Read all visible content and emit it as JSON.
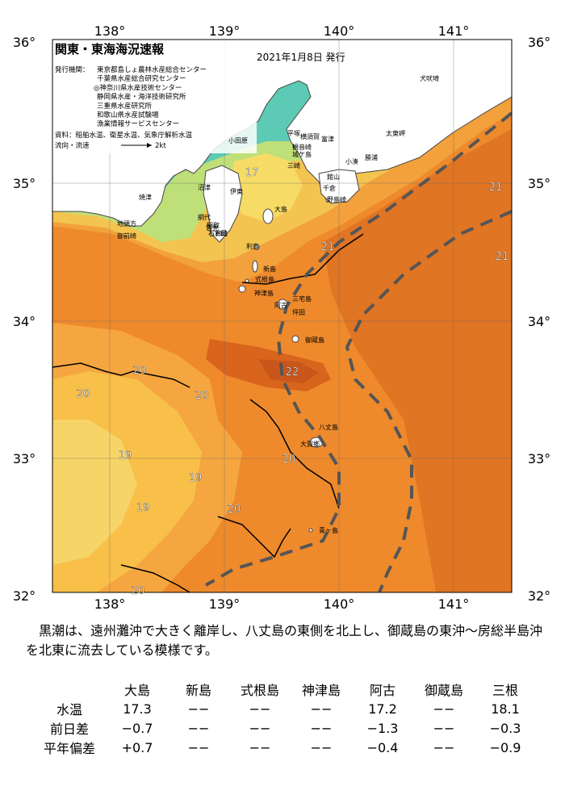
{
  "header": {
    "title": "関東・東海海況速報",
    "date": "2021年1月8日 発行",
    "issuers_label": "発行機関：",
    "issuers": [
      "東京都島しょ農林水産総合センター",
      "千葉県水産総合研究センター",
      "◎神奈川県水産技術センター",
      "静岡県水産・海洋技術研究所",
      "三重県水産研究所",
      "和歌山県水産試験場",
      "漁業情報サービスセンター"
    ],
    "source": "資料：船舶水温、衛星水温、気象庁解析水温",
    "flow_label": "流向・流速",
    "flow_scale": "2kt"
  },
  "axes": {
    "lon_labels": [
      "138°",
      "139°",
      "140°",
      "141°"
    ],
    "lat_labels": [
      "36°",
      "35°",
      "34°",
      "33°",
      "32°"
    ]
  },
  "colors": {
    "warm_dark": "#d9641c",
    "warm": "#ee8a2c",
    "warm_light": "#f5a640",
    "orange_yellow": "#f8c048",
    "yellow": "#f6dc66",
    "yellow_green": "#cfe07a",
    "green": "#8fd66f",
    "teal": "#48c8b2",
    "blue": "#3a9ee0",
    "kuroshio_line": "#555555"
  },
  "place_labels": [
    "犬吠埼",
    "太東岬",
    "勝浦",
    "小湊",
    "館山",
    "千倉",
    "野島崎",
    "富津",
    "横須賀",
    "平塚",
    "観音崎",
    "小田原",
    "城ケ島",
    "三崎",
    "伊東",
    "大島",
    "網代",
    "稲取",
    "下田",
    "雲見",
    "石廊崎",
    "焼津",
    "御前崎",
    "地頭方",
    "利島",
    "新島",
    "式根島",
    "神津島",
    "三宅島",
    "阿古",
    "坪田",
    "御蔵島",
    "八丈島",
    "大賀郷",
    "青ヶ島",
    "沼津"
  ],
  "isotherms": [
    "17",
    "21",
    "21",
    "21",
    "20",
    "20",
    "20",
    "19",
    "19",
    "19",
    "20",
    "20",
    "20",
    "22"
  ],
  "summary": "黒潮は、遠州灘沖で大きく離岸し、八丈島の東側を北上し、御蔵島の東沖～房総半島沖を北東に流去している模様です。",
  "table": {
    "columns": [
      "大島",
      "新島",
      "式根島",
      "神津島",
      "阿古",
      "御蔵島",
      "三根"
    ],
    "rows": [
      {
        "label": "水温",
        "values": [
          "17.3",
          "−−",
          "−−",
          "−−",
          "17.2",
          "−−",
          "18.1"
        ]
      },
      {
        "label": "前日差",
        "values": [
          "−0.7",
          "−−",
          "−−",
          "−−",
          "−1.3",
          "−−",
          "−0.3"
        ]
      },
      {
        "label": "平年偏差",
        "values": [
          "+0.7",
          "−−",
          "−−",
          "−−",
          "−0.4",
          "−−",
          "−0.9"
        ]
      }
    ]
  }
}
